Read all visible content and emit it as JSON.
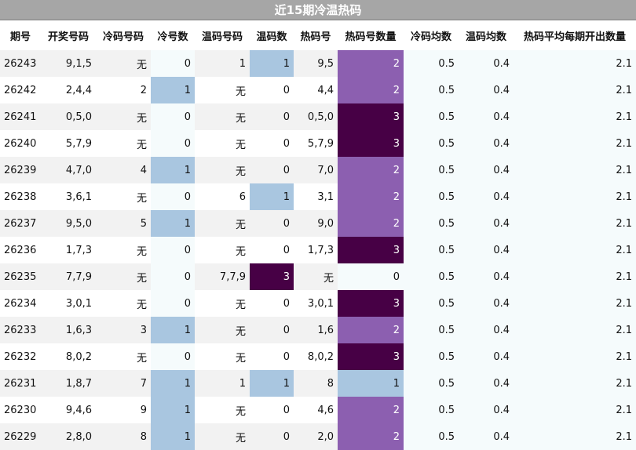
{
  "title": "近15期冷温热码",
  "columns": [
    "期号",
    "开奖号码",
    "冷码号码",
    "冷号数",
    "温码号码",
    "温码数",
    "热码号",
    "热码号数量",
    "冷码均数",
    "温码均数",
    "热码平均每期开出数量"
  ],
  "colors": {
    "count_1": "#a9c6e0",
    "count_2": "#8c5fb0",
    "count_3": "#470045"
  },
  "rows": [
    [
      "26243",
      "9,1,5",
      "无",
      "0",
      "1",
      "1",
      "9,5",
      "2",
      "0.5",
      "0.4",
      "2.1"
    ],
    [
      "26242",
      "2,4,4",
      "2",
      "1",
      "无",
      "0",
      "4,4",
      "2",
      "0.5",
      "0.4",
      "2.1"
    ],
    [
      "26241",
      "0,5,0",
      "无",
      "0",
      "无",
      "0",
      "0,5,0",
      "3",
      "0.5",
      "0.4",
      "2.1"
    ],
    [
      "26240",
      "5,7,9",
      "无",
      "0",
      "无",
      "0",
      "5,7,9",
      "3",
      "0.5",
      "0.4",
      "2.1"
    ],
    [
      "26239",
      "4,7,0",
      "4",
      "1",
      "无",
      "0",
      "7,0",
      "2",
      "0.5",
      "0.4",
      "2.1"
    ],
    [
      "26238",
      "3,6,1",
      "无",
      "0",
      "6",
      "1",
      "3,1",
      "2",
      "0.5",
      "0.4",
      "2.1"
    ],
    [
      "26237",
      "9,5,0",
      "5",
      "1",
      "无",
      "0",
      "9,0",
      "2",
      "0.5",
      "0.4",
      "2.1"
    ],
    [
      "26236",
      "1,7,3",
      "无",
      "0",
      "无",
      "0",
      "1,7,3",
      "3",
      "0.5",
      "0.4",
      "2.1"
    ],
    [
      "26235",
      "7,7,9",
      "无",
      "0",
      "7,7,9",
      "3",
      "无",
      "0",
      "0.5",
      "0.4",
      "2.1"
    ],
    [
      "26234",
      "3,0,1",
      "无",
      "0",
      "无",
      "0",
      "3,0,1",
      "3",
      "0.5",
      "0.4",
      "2.1"
    ],
    [
      "26233",
      "1,6,3",
      "3",
      "1",
      "无",
      "0",
      "1,6",
      "2",
      "0.5",
      "0.4",
      "2.1"
    ],
    [
      "26232",
      "8,0,2",
      "无",
      "0",
      "无",
      "0",
      "8,0,2",
      "3",
      "0.5",
      "0.4",
      "2.1"
    ],
    [
      "26231",
      "1,8,7",
      "7",
      "1",
      "1",
      "1",
      "8",
      "1",
      "0.5",
      "0.4",
      "2.1"
    ],
    [
      "26230",
      "9,4,6",
      "9",
      "1",
      "无",
      "0",
      "4,6",
      "2",
      "0.5",
      "0.4",
      "2.1"
    ],
    [
      "26229",
      "2,8,0",
      "8",
      "1",
      "无",
      "0",
      "2,0",
      "2",
      "0.5",
      "0.4",
      "2.1"
    ]
  ]
}
